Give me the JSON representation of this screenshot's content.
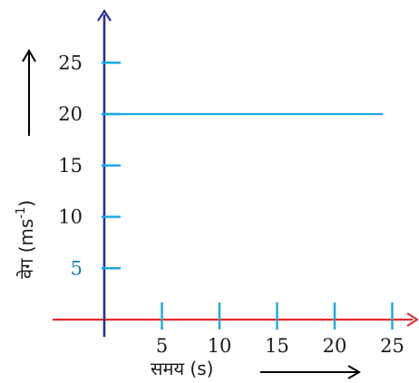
{
  "chart_data": {
    "type": "line",
    "title": "",
    "xlabel": "समय (s)",
    "ylabel": "वेग  (ms",
    "ylabel_superscript": "-1",
    "ylabel_close": ")",
    "xticks": [
      "5",
      "10",
      "15",
      "20",
      "25"
    ],
    "yticks": [
      "5",
      "10",
      "15",
      "20",
      "25"
    ],
    "xlim": [
      0,
      25
    ],
    "ylim": [
      0,
      25
    ],
    "series": [
      {
        "x": [
          0,
          24.2
        ],
        "y": [
          20,
          20
        ]
      }
    ],
    "grid": false,
    "colors": {
      "x_axis": "#e8262c",
      "y_axis": "#2b2f8f",
      "line": "#1ba9e1",
      "ticks": "#1ba9e1",
      "y_tick_5_label": "#1b7fb3",
      "arrows": "#000000"
    }
  }
}
